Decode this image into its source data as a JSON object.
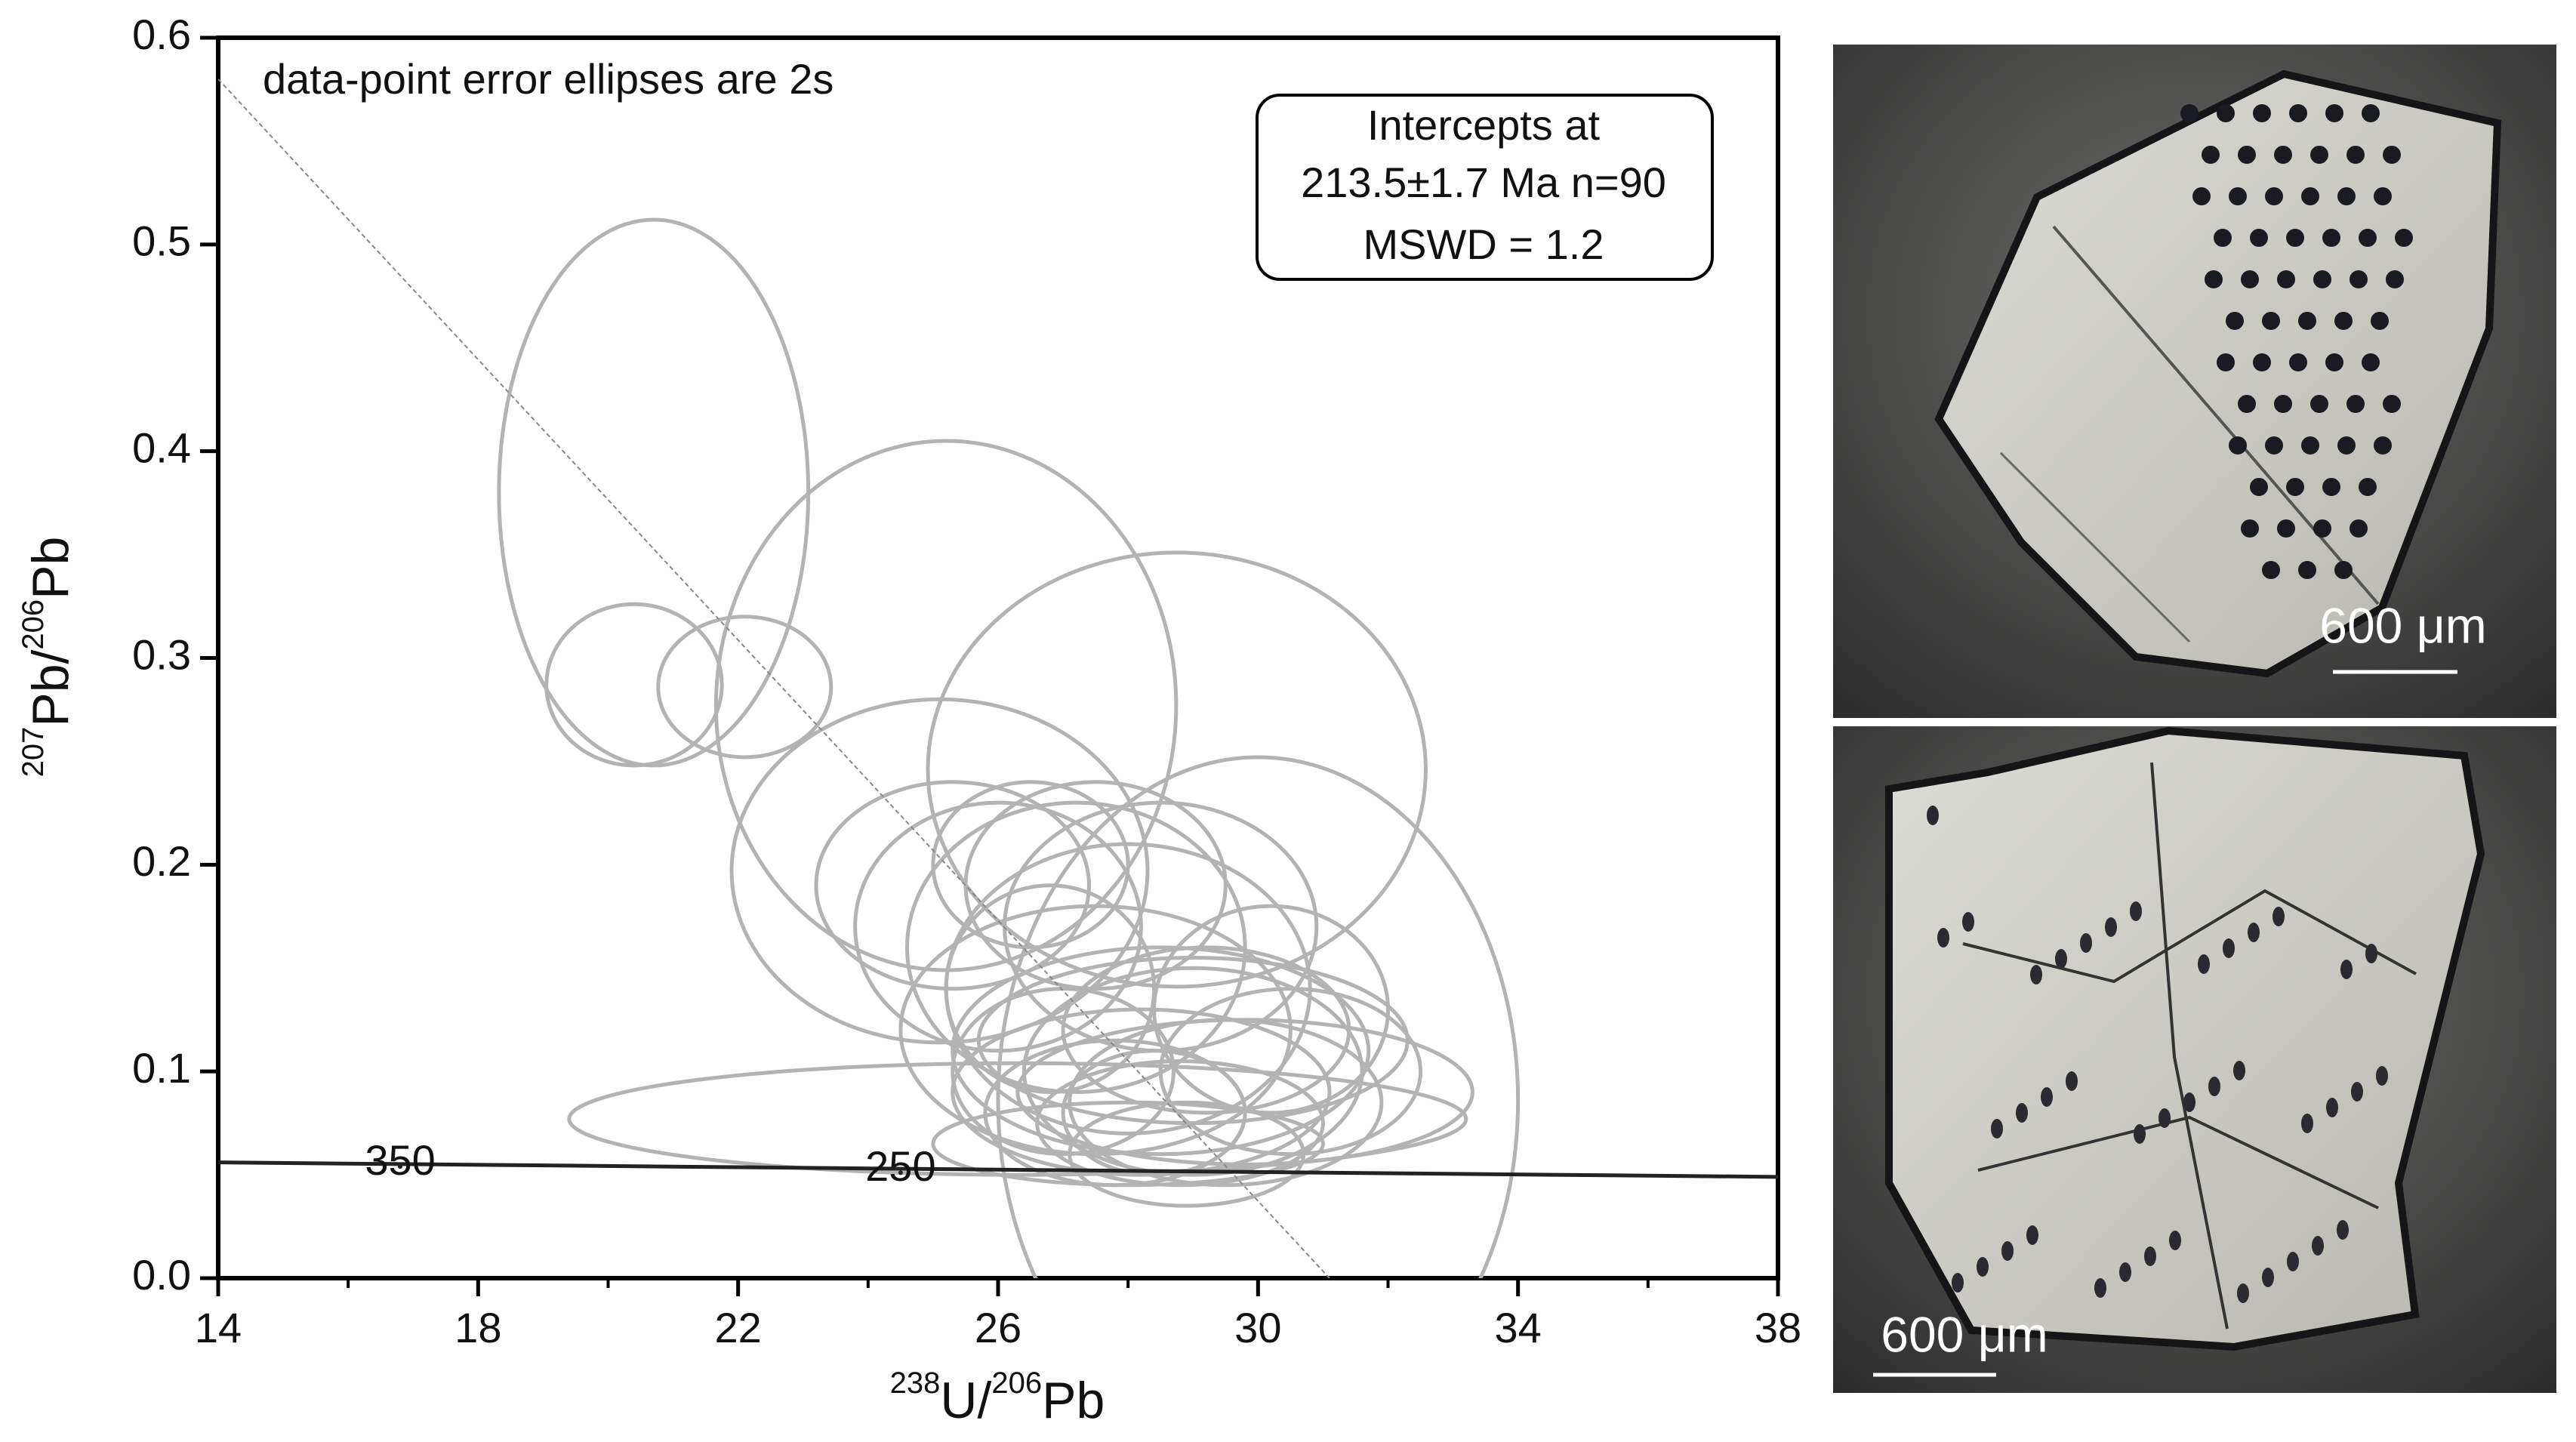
{
  "chart_data": {
    "type": "ellipse",
    "x_label_parts": [
      "238",
      "U/",
      "206",
      "Pb"
    ],
    "y_label_parts": [
      "207",
      "Pb/",
      "206",
      "Pb"
    ],
    "annotation": "data-point error ellipses are 2s",
    "intercept_box": [
      "Intercepts at",
      "213.5±1.7 Ma  n=90",
      "MSWD = 1.2"
    ],
    "xlim": [
      14,
      38
    ],
    "xticks": [
      14,
      18,
      22,
      26,
      30,
      34,
      38
    ],
    "xminorticks": [
      16,
      20,
      24,
      28,
      32,
      36
    ],
    "ylim": [
      0,
      0.6
    ],
    "yticks": [
      {
        "value": 0,
        "label": "0.0"
      },
      0.1,
      0.2,
      0.3,
      0.4,
      0.5,
      0.6
    ],
    "color": "#b3b3b3",
    "x": [
      20.7,
      20.4,
      22.1,
      25.2,
      28.75,
      30.0,
      26.3,
      25.1,
      25.3,
      26.0,
      27.2,
      28.0,
      27.5,
      28.5,
      29.0,
      28.2,
      29.5,
      28.8,
      27.8,
      29.8,
      28.0,
      30.2,
      26.8,
      27.5,
      28.5,
      29.2,
      28.9,
      27.0,
      30.5,
      28.4,
      29.0,
      26.5
    ],
    "y": [
      0.38,
      0.287,
      0.286,
      0.277,
      0.246,
      0.086,
      0.077,
      0.197,
      0.19,
      0.17,
      0.16,
      0.14,
      0.12,
      0.11,
      0.1,
      0.09,
      0.085,
      0.075,
      0.08,
      0.09,
      0.065,
      0.13,
      0.14,
      0.19,
      0.17,
      0.12,
      0.06,
      0.1,
      0.1,
      0.08,
      0.115,
      0.2
    ],
    "x_err": [
      2.38,
      1.35,
      1.33,
      3.54,
      3.83,
      4.0,
      6.9,
      3.2,
      2.1,
      2.2,
      2.6,
      2.8,
      3.0,
      3.2,
      2.6,
      2.9,
      2.4,
      2.2,
      2.0,
      3.5,
      3.0,
      1.8,
      1.6,
      2.0,
      2.4,
      2.2,
      1.8,
      1.7,
      2.0,
      1.4,
      3.3,
      1.5
    ],
    "y_err": [
      0.132,
      0.039,
      0.034,
      0.128,
      0.105,
      0.166,
      0.027,
      0.083,
      0.05,
      0.06,
      0.07,
      0.07,
      0.06,
      0.05,
      0.05,
      0.04,
      0.04,
      0.03,
      0.035,
      0.035,
      0.02,
      0.05,
      0.05,
      0.05,
      0.06,
      0.04,
      0.025,
      0.04,
      0.04,
      0.03,
      0.04,
      0.04
    ],
    "discordia": {
      "x": [
        14,
        31.1
      ],
      "y": [
        0.58,
        0
      ]
    },
    "concordia": {
      "x": [
        14,
        38
      ],
      "y": [
        0.056,
        0.049
      ]
    },
    "concordia_labels": [
      {
        "text": "350",
        "x": 16.8,
        "y": 0.054
      },
      {
        "text": "250",
        "x": 24.5,
        "y": 0.051
      }
    ],
    "scale_bars": [
      "600 μm",
      "600 μm"
    ]
  }
}
